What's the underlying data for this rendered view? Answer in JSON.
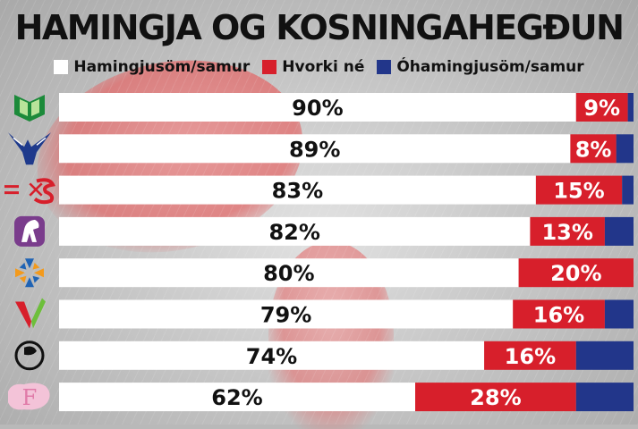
{
  "chart_data": {
    "type": "bar",
    "stacked": true,
    "orientation": "horizontal",
    "title": "HAMINGJA OG KOSNINGAHEGÐUN",
    "legend_position": "top",
    "xlim": [
      0,
      100
    ],
    "categories": [
      "V",
      "D",
      "S",
      "B",
      "C",
      "A",
      "P",
      "F"
    ],
    "series": [
      {
        "name": "Hamingjusöm/samur",
        "color": "#ffffff",
        "values": [
          90,
          89,
          83,
          82,
          80,
          79,
          74,
          62
        ],
        "labels": [
          "90%",
          "89%",
          "83%",
          "82%",
          "80%",
          "79%",
          "74%",
          "62%"
        ]
      },
      {
        "name": "Hvorki né",
        "color": "#d71f2b",
        "values": [
          9,
          8,
          15,
          13,
          20,
          16,
          16,
          28
        ],
        "labels": [
          "9%",
          "8%",
          "15%",
          "13%",
          "20%",
          "16%",
          "16%",
          "28%"
        ]
      },
      {
        "name": "Óhamingjusöm/samur",
        "color": "#22368a",
        "values": [
          1,
          3,
          2,
          5,
          0,
          5,
          10,
          10
        ]
      }
    ],
    "party_logos": [
      {
        "icon": "green-book-icon",
        "color": "#1c8a3a"
      },
      {
        "icon": "blue-falcon-icon",
        "color": "#1e3a8c"
      },
      {
        "icon": "xs-logo-icon",
        "color": "#d71f2b"
      },
      {
        "icon": "purple-horse-icon",
        "color": "#7a3c8c"
      },
      {
        "icon": "blue-orange-star-icon",
        "color": "#1f63b4"
      },
      {
        "icon": "red-green-v-icon",
        "color": "#d71f2b"
      },
      {
        "icon": "pirate-flag-icon",
        "color": "#111111"
      },
      {
        "icon": "pink-f-iceland-icon",
        "color": "#e07aa8"
      }
    ]
  }
}
